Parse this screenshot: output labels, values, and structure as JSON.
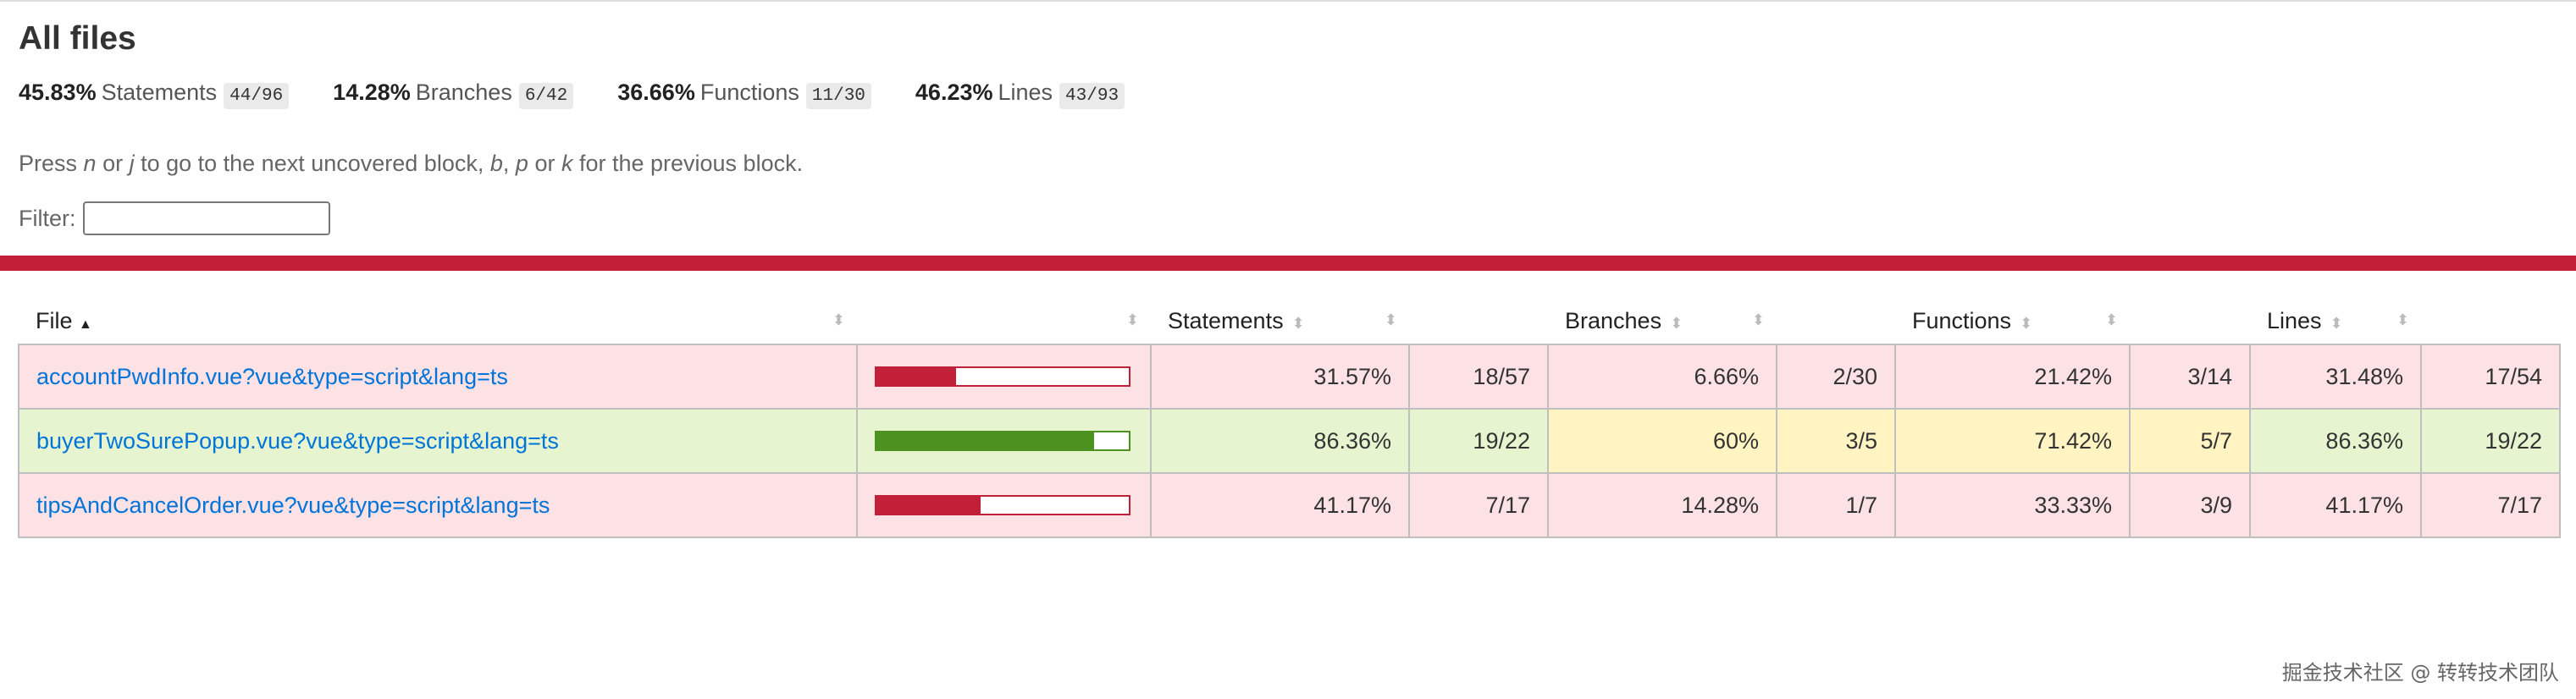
{
  "header": {
    "title": "All files",
    "summary": [
      {
        "pct": "45.83%",
        "name": "Statements",
        "count": "44/96"
      },
      {
        "pct": "14.28%",
        "name": "Branches",
        "count": "6/42"
      },
      {
        "pct": "36.66%",
        "name": "Functions",
        "count": "11/30"
      },
      {
        "pct": "46.23%",
        "name": "Lines",
        "count": "43/93"
      }
    ],
    "help": {
      "t1": "Press ",
      "k1": "n",
      "t2": " or ",
      "k2": "j",
      "t3": " to go to the next uncovered block, ",
      "k3": "b",
      "t4": ", ",
      "k4": "p",
      "t5": " or ",
      "k5": "k",
      "t6": " for the previous block."
    },
    "filter_label": "Filter:"
  },
  "table": {
    "headers": {
      "file": "File",
      "statements": "Statements",
      "branches": "Branches",
      "functions": "Functions",
      "lines": "Lines"
    },
    "rows": [
      {
        "file": "accountPwdInfo.vue?vue&type=script&lang=ts",
        "statements": {
          "value": 31.57,
          "label": "31.57%",
          "count": "18/57",
          "level": "low"
        },
        "branches": {
          "label": "6.66%",
          "count": "2/30",
          "level": "low"
        },
        "functions": {
          "label": "21.42%",
          "count": "3/14",
          "level": "low"
        },
        "lines": {
          "label": "31.48%",
          "count": "17/54",
          "level": "low"
        }
      },
      {
        "file": "buyerTwoSurePopup.vue?vue&type=script&lang=ts",
        "statements": {
          "value": 86.36,
          "label": "86.36%",
          "count": "19/22",
          "level": "high"
        },
        "branches": {
          "label": "60%",
          "count": "3/5",
          "level": "medium"
        },
        "functions": {
          "label": "71.42%",
          "count": "5/7",
          "level": "medium"
        },
        "lines": {
          "label": "86.36%",
          "count": "19/22",
          "level": "high"
        }
      },
      {
        "file": "tipsAndCancelOrder.vue?vue&type=script&lang=ts",
        "statements": {
          "value": 41.17,
          "label": "41.17%",
          "count": "7/17",
          "level": "low"
        },
        "branches": {
          "label": "14.28%",
          "count": "1/7",
          "level": "low"
        },
        "functions": {
          "label": "33.33%",
          "count": "3/9",
          "level": "low"
        },
        "lines": {
          "label": "41.17%",
          "count": "7/17",
          "level": "low"
        }
      }
    ]
  },
  "watermark": "掘金技术社区 @ 转转技术团队"
}
